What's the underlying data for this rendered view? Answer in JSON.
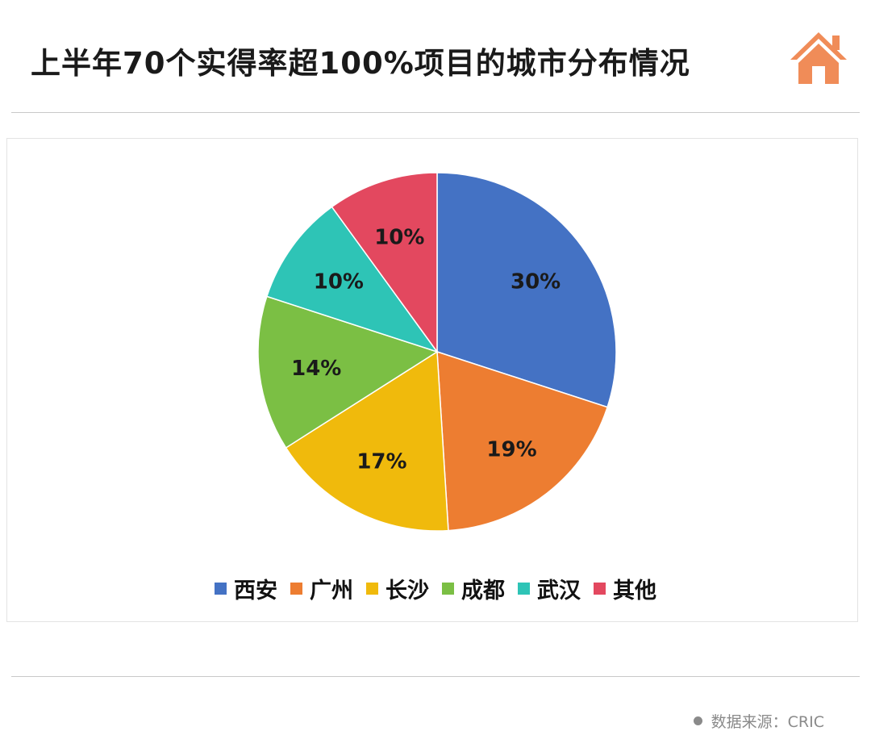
{
  "header": {
    "title": "上半年70个实得率超100%项目的城市分布情况"
  },
  "footer": {
    "source": "数据来源：CRIC"
  },
  "logo": {
    "icon": "house-icon",
    "color": "#f08c58"
  },
  "chart_data": {
    "type": "pie",
    "title": "上半年70个实得率超100%项目的城市分布情况",
    "legend_position": "bottom",
    "start_angle": "12 o'clock",
    "direction": "clockwise",
    "slices": [
      {
        "name": "西安",
        "value": 30,
        "label": "30%",
        "color": "#4472c4"
      },
      {
        "name": "广州",
        "value": 19,
        "label": "19%",
        "color": "#ed7d31"
      },
      {
        "name": "长沙",
        "value": 17,
        "label": "17%",
        "color": "#f0ba0c"
      },
      {
        "name": "成都",
        "value": 14,
        "label": "14%",
        "color": "#7bbf44"
      },
      {
        "name": "武汉",
        "value": 10,
        "label": "10%",
        "color": "#2ec4b6"
      },
      {
        "name": "其他",
        "value": 10,
        "label": "10%",
        "color": "#e3485f"
      }
    ]
  }
}
